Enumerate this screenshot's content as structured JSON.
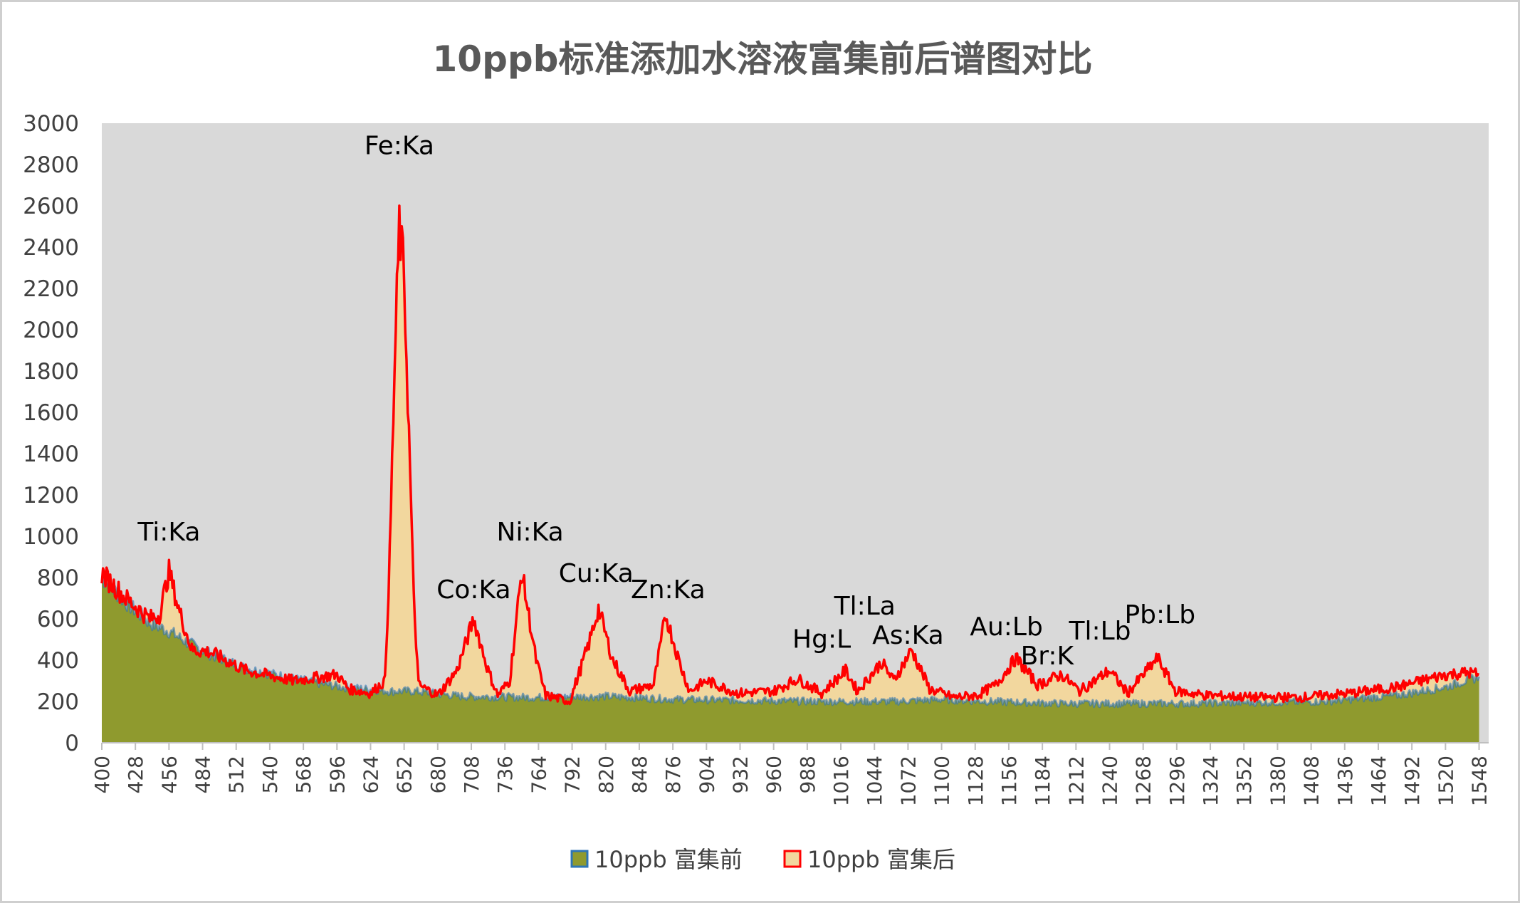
{
  "chart_data": {
    "type": "area",
    "title": "10ppb标准添加水溶液富集前后谱图对比",
    "xlabel": "",
    "ylabel": "",
    "xlim": [
      400,
      1556
    ],
    "ylim": [
      0,
      3000
    ],
    "y_ticks": [
      0,
      200,
      400,
      600,
      800,
      1000,
      1200,
      1400,
      1600,
      1800,
      2000,
      2200,
      2400,
      2600,
      2800,
      3000
    ],
    "x_ticks": [
      400,
      428,
      456,
      484,
      512,
      540,
      568,
      596,
      624,
      652,
      680,
      708,
      736,
      764,
      792,
      820,
      848,
      876,
      904,
      932,
      960,
      988,
      1016,
      1044,
      1072,
      1100,
      1128,
      1156,
      1184,
      1212,
      1240,
      1268,
      1296,
      1324,
      1352,
      1380,
      1408,
      1436,
      1464,
      1492,
      1520,
      1548
    ],
    "legend_position": "bottom",
    "grid": false,
    "colors": {
      "plot_bg": "#d9d9d9",
      "before_fill": "#8f9a2e",
      "before_line": "#2e75b6",
      "after_fill": "#f2d79e",
      "after_line": "#ff0000"
    },
    "series": [
      {
        "name": "10ppb 富集前",
        "points": [
          [
            400,
            800
          ],
          [
            420,
            680
          ],
          [
            440,
            580
          ],
          [
            456,
            540
          ],
          [
            470,
            490
          ],
          [
            490,
            430
          ],
          [
            520,
            360
          ],
          [
            560,
            310
          ],
          [
            600,
            270
          ],
          [
            640,
            250
          ],
          [
            660,
            250
          ],
          [
            700,
            225
          ],
          [
            760,
            220
          ],
          [
            820,
            225
          ],
          [
            880,
            210
          ],
          [
            940,
            205
          ],
          [
            1000,
            200
          ],
          [
            1060,
            200
          ],
          [
            1100,
            210
          ],
          [
            1140,
            200
          ],
          [
            1200,
            190
          ],
          [
            1260,
            190
          ],
          [
            1300,
            190
          ],
          [
            1360,
            195
          ],
          [
            1420,
            200
          ],
          [
            1480,
            230
          ],
          [
            1520,
            270
          ],
          [
            1548,
            320
          ]
        ]
      },
      {
        "name": "10ppb 富集后",
        "points": [
          [
            400,
            820
          ],
          [
            420,
            700
          ],
          [
            440,
            600
          ],
          [
            448,
            620
          ],
          [
            456,
            830
          ],
          [
            464,
            650
          ],
          [
            475,
            450
          ],
          [
            490,
            440
          ],
          [
            520,
            350
          ],
          [
            560,
            300
          ],
          [
            596,
            330
          ],
          [
            606,
            260
          ],
          [
            624,
            240
          ],
          [
            636,
            300
          ],
          [
            640,
            900
          ],
          [
            644,
            1800
          ],
          [
            648,
            2500
          ],
          [
            652,
            2250
          ],
          [
            656,
            1500
          ],
          [
            660,
            700
          ],
          [
            664,
            280
          ],
          [
            680,
            230
          ],
          [
            696,
            350
          ],
          [
            710,
            600
          ],
          [
            722,
            350
          ],
          [
            730,
            230
          ],
          [
            740,
            300
          ],
          [
            750,
            830
          ],
          [
            762,
            400
          ],
          [
            770,
            230
          ],
          [
            790,
            200
          ],
          [
            806,
            480
          ],
          [
            814,
            650
          ],
          [
            826,
            400
          ],
          [
            840,
            250
          ],
          [
            860,
            280
          ],
          [
            870,
            620
          ],
          [
            882,
            380
          ],
          [
            890,
            250
          ],
          [
            904,
            300
          ],
          [
            930,
            240
          ],
          [
            960,
            250
          ],
          [
            980,
            310
          ],
          [
            1000,
            240
          ],
          [
            1020,
            350
          ],
          [
            1030,
            250
          ],
          [
            1050,
            390
          ],
          [
            1060,
            300
          ],
          [
            1075,
            450
          ],
          [
            1090,
            260
          ],
          [
            1110,
            220
          ],
          [
            1130,
            230
          ],
          [
            1145,
            280
          ],
          [
            1162,
            410
          ],
          [
            1180,
            280
          ],
          [
            1200,
            330
          ],
          [
            1215,
            250
          ],
          [
            1240,
            350
          ],
          [
            1255,
            240
          ],
          [
            1280,
            410
          ],
          [
            1295,
            250
          ],
          [
            1320,
            230
          ],
          [
            1360,
            220
          ],
          [
            1400,
            220
          ],
          [
            1440,
            240
          ],
          [
            1480,
            270
          ],
          [
            1520,
            330
          ],
          [
            1540,
            340
          ],
          [
            1548,
            330
          ]
        ]
      }
    ],
    "annotations": [
      {
        "label": "Ti:Ka",
        "x": 456,
        "y": 980
      },
      {
        "label": "Fe:Ka",
        "x": 648,
        "y": 2850
      },
      {
        "label": "Co:Ka",
        "x": 710,
        "y": 700
      },
      {
        "label": "Ni:Ka",
        "x": 757,
        "y": 980
      },
      {
        "label": "Cu:Ka",
        "x": 812,
        "y": 780
      },
      {
        "label": "Zn:Ka",
        "x": 872,
        "y": 700
      },
      {
        "label": "Hg:L",
        "x": 1000,
        "y": 460
      },
      {
        "label": "Tl:La",
        "x": 1036,
        "y": 620
      },
      {
        "label": "As:Ka",
        "x": 1072,
        "y": 480
      },
      {
        "label": "Au:Lb",
        "x": 1154,
        "y": 520
      },
      {
        "label": "Br:K",
        "x": 1188,
        "y": 380
      },
      {
        "label": "Tl:Lb",
        "x": 1232,
        "y": 500
      },
      {
        "label": "Pb:Lb",
        "x": 1282,
        "y": 580
      }
    ]
  }
}
